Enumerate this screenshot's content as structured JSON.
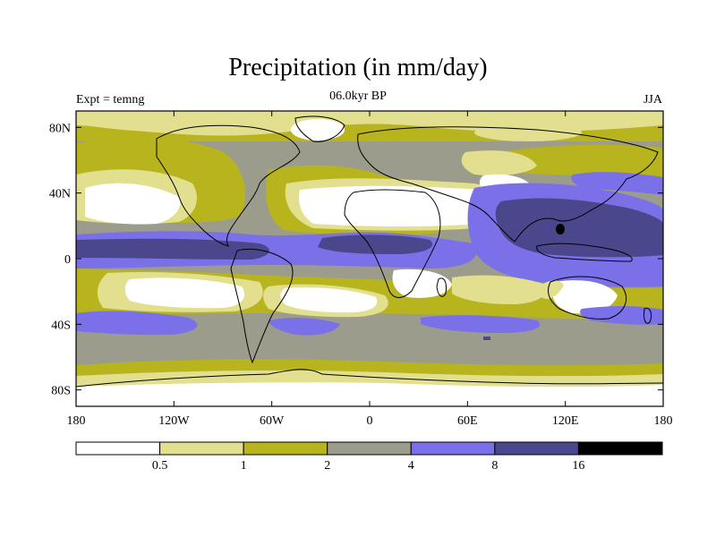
{
  "plot": {
    "title": "Precipitation (in mm/day)",
    "center_subtitle": "06.0kyr BP",
    "left_subtitle": "Expt = temng",
    "right_subtitle": "JJA"
  },
  "axes": {
    "lat_ticks": [
      {
        "value": 80,
        "label": "80N"
      },
      {
        "value": 40,
        "label": "40N"
      },
      {
        "value": 0,
        "label": "0"
      },
      {
        "value": -40,
        "label": "40S"
      },
      {
        "value": -80,
        "label": "80S"
      }
    ],
    "lon_ticks": [
      {
        "value": -180,
        "label": "180"
      },
      {
        "value": -120,
        "label": "120W"
      },
      {
        "value": -60,
        "label": "60W"
      },
      {
        "value": 0,
        "label": "0"
      },
      {
        "value": 60,
        "label": "60E"
      },
      {
        "value": 120,
        "label": "120E"
      },
      {
        "value": 180,
        "label": "180"
      }
    ]
  },
  "legend": {
    "bins": [
      {
        "color": "#ffffff"
      },
      {
        "color": "#e2df8f"
      },
      {
        "color": "#b8b41e"
      },
      {
        "color": "#9c9c8c"
      },
      {
        "color": "#7a70e8"
      },
      {
        "color": "#4a478c"
      },
      {
        "color": "#000000"
      }
    ],
    "boundaries": [
      "0.5",
      "1",
      "2",
      "4",
      "8",
      "16"
    ]
  },
  "colors": {
    "bin0": "#ffffff",
    "bin1": "#e2df8f",
    "bin2": "#b8b41e",
    "bin3": "#9c9c8c",
    "bin4": "#7a70e8",
    "bin5": "#4a478c",
    "bin6": "#000000"
  }
}
